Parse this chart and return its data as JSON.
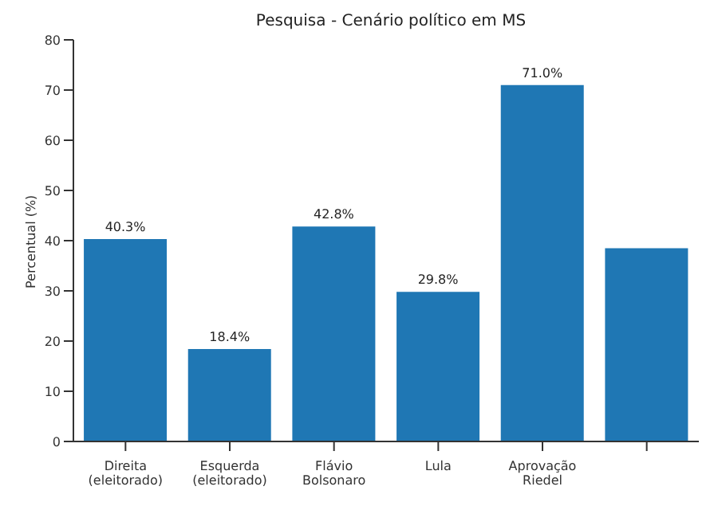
{
  "chart_data": {
    "type": "bar",
    "title": "Pesquisa - Cenário político em MS",
    "ylabel": "Percentual (%)",
    "categories": [
      "Direita\n(eleitorado)",
      "Esquerda\n(eleitorado)",
      "Flávio\nBolsonaro",
      "Lula",
      "Aprovação\nRiedel",
      null
    ],
    "values": [
      40.3,
      18.4,
      42.8,
      29.8,
      71.0,
      38.5
    ],
    "value_labels": [
      "40.3%",
      "18.4%",
      "42.8%",
      "29.8%",
      "71.0%",
      null
    ],
    "color": "#1f77b4",
    "ylim": [
      0,
      80
    ],
    "yticks": [
      0,
      10,
      20,
      30,
      40,
      50,
      60,
      70,
      80
    ],
    "grid": false
  }
}
